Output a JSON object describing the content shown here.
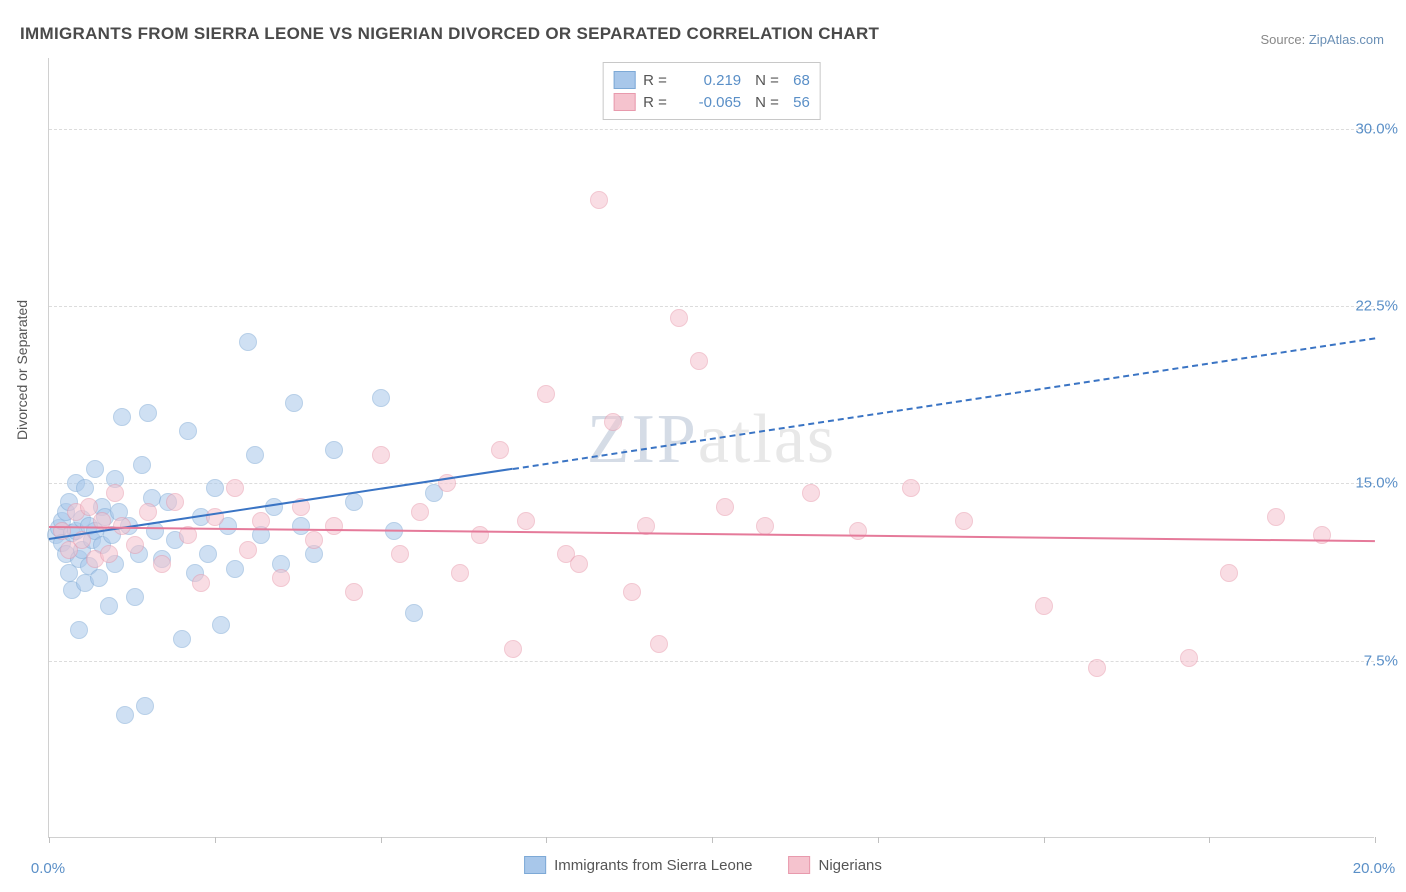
{
  "title": "IMMIGRANTS FROM SIERRA LEONE VS NIGERIAN DIVORCED OR SEPARATED CORRELATION CHART",
  "source_prefix": "Source: ",
  "source_link": "ZipAtlas.com",
  "y_axis_label": "Divorced or Separated",
  "watermark": {
    "zip": "ZIP",
    "atlas": "atlas"
  },
  "chart": {
    "type": "scatter",
    "xlim": [
      0,
      20
    ],
    "ylim": [
      0,
      33
    ],
    "x_ticks": [
      0,
      2.5,
      5,
      7.5,
      10,
      12.5,
      15,
      17.5,
      20
    ],
    "x_tick_labels": {
      "0": "0.0%",
      "20": "20.0%"
    },
    "y_ticks": [
      7.5,
      15.0,
      22.5,
      30.0
    ],
    "y_tick_labels": [
      "7.5%",
      "15.0%",
      "22.5%",
      "30.0%"
    ],
    "gridlines_y": [
      7.5,
      15.0,
      22.5,
      30.0
    ],
    "background_color": "#ffffff",
    "grid_color": "#dcdcdc",
    "axis_color": "#d0d0d0",
    "tick_label_color": "#5a8fc7",
    "point_radius": 9,
    "point_opacity": 0.55,
    "series": [
      {
        "name": "Immigrants from Sierra Leone",
        "color_fill": "#a8c7ea",
        "color_stroke": "#7da9d6",
        "R": "0.219",
        "N": "68",
        "trend": {
          "x1": 0,
          "y1": 12.7,
          "x2": 20,
          "y2": 21.2,
          "solid_until_x": 7.0,
          "color": "#3a74c4",
          "width": 2
        },
        "points": [
          [
            0.1,
            12.8
          ],
          [
            0.15,
            13.1
          ],
          [
            0.2,
            12.5
          ],
          [
            0.2,
            13.4
          ],
          [
            0.25,
            12.0
          ],
          [
            0.25,
            13.8
          ],
          [
            0.3,
            11.2
          ],
          [
            0.3,
            14.2
          ],
          [
            0.35,
            12.9
          ],
          [
            0.35,
            10.5
          ],
          [
            0.4,
            13.0
          ],
          [
            0.4,
            15.0
          ],
          [
            0.45,
            11.8
          ],
          [
            0.45,
            8.8
          ],
          [
            0.5,
            13.5
          ],
          [
            0.5,
            12.2
          ],
          [
            0.55,
            14.8
          ],
          [
            0.55,
            10.8
          ],
          [
            0.6,
            13.2
          ],
          [
            0.6,
            11.5
          ],
          [
            0.65,
            12.6
          ],
          [
            0.7,
            15.6
          ],
          [
            0.7,
            13.0
          ],
          [
            0.75,
            11.0
          ],
          [
            0.8,
            14.0
          ],
          [
            0.8,
            12.4
          ],
          [
            0.85,
            13.6
          ],
          [
            0.9,
            9.8
          ],
          [
            0.95,
            12.8
          ],
          [
            1.0,
            15.2
          ],
          [
            1.0,
            11.6
          ],
          [
            1.05,
            13.8
          ],
          [
            1.1,
            17.8
          ],
          [
            1.15,
            5.2
          ],
          [
            1.2,
            13.2
          ],
          [
            1.3,
            10.2
          ],
          [
            1.35,
            12.0
          ],
          [
            1.4,
            15.8
          ],
          [
            1.45,
            5.6
          ],
          [
            1.5,
            18.0
          ],
          [
            1.55,
            14.4
          ],
          [
            1.6,
            13.0
          ],
          [
            1.7,
            11.8
          ],
          [
            1.8,
            14.2
          ],
          [
            1.9,
            12.6
          ],
          [
            2.0,
            8.4
          ],
          [
            2.1,
            17.2
          ],
          [
            2.2,
            11.2
          ],
          [
            2.3,
            13.6
          ],
          [
            2.4,
            12.0
          ],
          [
            2.5,
            14.8
          ],
          [
            2.6,
            9.0
          ],
          [
            2.7,
            13.2
          ],
          [
            2.8,
            11.4
          ],
          [
            3.0,
            21.0
          ],
          [
            3.1,
            16.2
          ],
          [
            3.2,
            12.8
          ],
          [
            3.4,
            14.0
          ],
          [
            3.5,
            11.6
          ],
          [
            3.7,
            18.4
          ],
          [
            3.8,
            13.2
          ],
          [
            4.0,
            12.0
          ],
          [
            4.3,
            16.4
          ],
          [
            4.6,
            14.2
          ],
          [
            5.0,
            18.6
          ],
          [
            5.2,
            13.0
          ],
          [
            5.5,
            9.5
          ],
          [
            5.8,
            14.6
          ]
        ]
      },
      {
        "name": "Nigerians",
        "color_fill": "#f5c3ce",
        "color_stroke": "#e89aad",
        "R": "-0.065",
        "N": "56",
        "trend": {
          "x1": 0,
          "y1": 13.2,
          "x2": 20,
          "y2": 12.6,
          "solid_until_x": 20,
          "color": "#e57a9a",
          "width": 2.5
        },
        "points": [
          [
            0.2,
            13.0
          ],
          [
            0.3,
            12.2
          ],
          [
            0.4,
            13.8
          ],
          [
            0.5,
            12.6
          ],
          [
            0.6,
            14.0
          ],
          [
            0.7,
            11.8
          ],
          [
            0.8,
            13.4
          ],
          [
            0.9,
            12.0
          ],
          [
            1.0,
            14.6
          ],
          [
            1.1,
            13.2
          ],
          [
            1.3,
            12.4
          ],
          [
            1.5,
            13.8
          ],
          [
            1.7,
            11.6
          ],
          [
            1.9,
            14.2
          ],
          [
            2.1,
            12.8
          ],
          [
            2.3,
            10.8
          ],
          [
            2.5,
            13.6
          ],
          [
            2.8,
            14.8
          ],
          [
            3.0,
            12.2
          ],
          [
            3.2,
            13.4
          ],
          [
            3.5,
            11.0
          ],
          [
            3.8,
            14.0
          ],
          [
            4.0,
            12.6
          ],
          [
            4.3,
            13.2
          ],
          [
            4.6,
            10.4
          ],
          [
            5.0,
            16.2
          ],
          [
            5.3,
            12.0
          ],
          [
            5.6,
            13.8
          ],
          [
            6.0,
            15.0
          ],
          [
            6.2,
            11.2
          ],
          [
            6.5,
            12.8
          ],
          [
            6.8,
            16.4
          ],
          [
            7.0,
            8.0
          ],
          [
            7.2,
            13.4
          ],
          [
            7.5,
            18.8
          ],
          [
            7.8,
            12.0
          ],
          [
            8.0,
            11.6
          ],
          [
            8.3,
            27.0
          ],
          [
            8.5,
            17.6
          ],
          [
            8.8,
            10.4
          ],
          [
            9.0,
            13.2
          ],
          [
            9.2,
            8.2
          ],
          [
            9.5,
            22.0
          ],
          [
            9.8,
            20.2
          ],
          [
            10.2,
            14.0
          ],
          [
            10.8,
            13.2
          ],
          [
            11.5,
            14.6
          ],
          [
            12.2,
            13.0
          ],
          [
            13.0,
            14.8
          ],
          [
            13.8,
            13.4
          ],
          [
            15.0,
            9.8
          ],
          [
            15.8,
            7.2
          ],
          [
            17.2,
            7.6
          ],
          [
            17.8,
            11.2
          ],
          [
            18.5,
            13.6
          ],
          [
            19.2,
            12.8
          ]
        ]
      }
    ]
  },
  "legend_top": {
    "R_label": "R =",
    "N_label": "N ="
  },
  "legend_bottom_items": [
    "Immigrants from Sierra Leone",
    "Nigerians"
  ]
}
